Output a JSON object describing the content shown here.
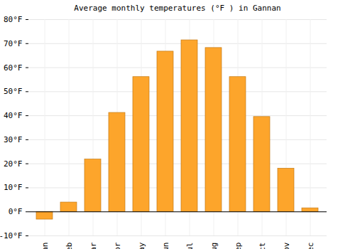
{
  "chart_data": {
    "type": "bar",
    "title": "Average monthly temperatures (°F ) in Gannan",
    "categories": [
      "an",
      "eb",
      "ar",
      "pr",
      "ay",
      "un",
      "ul",
      "ug",
      "ep",
      "ct",
      "ov",
      "ec"
    ],
    "values": [
      -3.2,
      3.9,
      21.8,
      41.2,
      56.1,
      66.7,
      71.4,
      68.2,
      56.1,
      39.5,
      18.0,
      1.5
    ],
    "color": "#fda52b",
    "ylim": [
      -10,
      80
    ],
    "yticks": [
      {
        "value": -10,
        "label": "-10°F"
      },
      {
        "value": 0,
        "label": "0°F"
      },
      {
        "value": 10,
        "label": "10°F"
      },
      {
        "value": 20,
        "label": "20°F"
      },
      {
        "value": 30,
        "label": "30°F"
      },
      {
        "value": 40,
        "label": "40°F"
      },
      {
        "value": 50,
        "label": "50°F"
      },
      {
        "value": 60,
        "label": "60°F"
      },
      {
        "value": 70,
        "label": "70°F"
      },
      {
        "value": 80,
        "label": "80°F"
      }
    ],
    "grid": true
  }
}
